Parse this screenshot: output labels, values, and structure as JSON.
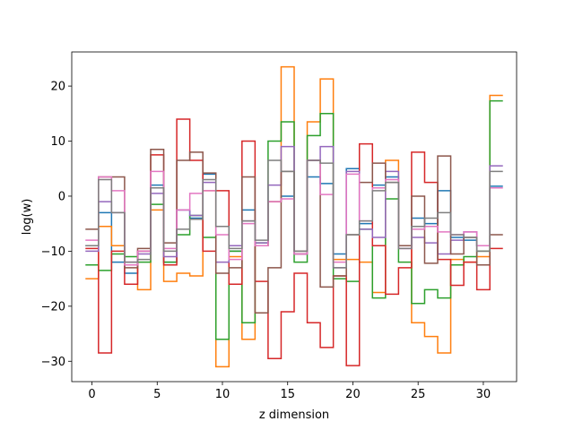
{
  "chart_data": {
    "type": "line",
    "drawstyle": "steps-mid",
    "title": "",
    "xlabel": "z dimension",
    "ylabel": "log(w)",
    "xlim": [
      -1.55,
      32.55
    ],
    "ylim": [
      -33.7,
      26.2
    ],
    "xticks": [
      0,
      5,
      10,
      15,
      20,
      25,
      30
    ],
    "yticks": [
      -30,
      -20,
      -10,
      0,
      10,
      20
    ],
    "grid": false,
    "legend": "none",
    "x": [
      0,
      1,
      2,
      3,
      4,
      5,
      6,
      7,
      8,
      9,
      10,
      11,
      12,
      13,
      14,
      15,
      16,
      17,
      18,
      19,
      20,
      21,
      22,
      23,
      24,
      25,
      26,
      27,
      28,
      29,
      30,
      31
    ],
    "series": [
      {
        "color": "#1f77b4",
        "values": [
          -9,
          -3,
          -12,
          -14,
          -10,
          2,
          -12,
          -2.5,
          -4,
          4,
          -5.5,
          -10,
          -2.5,
          -9,
          -1,
          0,
          -10.5,
          3.5,
          2.3,
          -10.5,
          5,
          -5,
          2,
          3.5,
          -9,
          -4,
          -5,
          1,
          -7.5,
          -8,
          -9,
          1.8
        ]
      },
      {
        "color": "#ff7f0e",
        "values": [
          -15,
          -5.5,
          -9,
          -12.5,
          -17,
          -2.5,
          -15.5,
          -14,
          -14.5,
          1,
          -31,
          -11,
          -26,
          -9,
          -1,
          23.5,
          -10.5,
          13.5,
          21.3,
          -11.5,
          -11.5,
          -12,
          -17.5,
          6.5,
          -9,
          -23,
          -25.5,
          -28.5,
          -11.5,
          -12,
          -11,
          18.3
        ]
      },
      {
        "color": "#2ca02c",
        "values": [
          -12.5,
          -13.5,
          -10.5,
          -11,
          -12,
          -1.5,
          -12,
          -7,
          -3.5,
          -7.5,
          -26,
          -10,
          -23,
          -8.5,
          10,
          13.5,
          -12,
          11,
          15,
          -15,
          -15.5,
          -6,
          -18.5,
          -0.5,
          -12,
          -19.5,
          -17,
          -18.5,
          -12.5,
          -11,
          -10,
          17.3
        ]
      },
      {
        "color": "#d62728",
        "values": [
          -9.5,
          -28.5,
          -10,
          -16,
          -10,
          7.5,
          -12.5,
          14,
          6.5,
          -10,
          1,
          -16,
          10,
          -15.5,
          -29.5,
          -21,
          -14,
          -23,
          -27.5,
          -14.5,
          -30.8,
          9.5,
          -9,
          -17.8,
          -13,
          8,
          2.5,
          -11.5,
          -16.2,
          -12,
          -17,
          -9.5
        ]
      },
      {
        "color": "#9467bd",
        "values": [
          -10,
          -1,
          -3,
          -12,
          -10.5,
          0.5,
          -11,
          -2.5,
          -3.5,
          2.5,
          -12,
          -9,
          -4.5,
          -8.5,
          2,
          9,
          -10.5,
          6.5,
          9,
          -13,
          4.5,
          -6,
          -7.5,
          4.5,
          -9.5,
          -7.5,
          -8.5,
          -10.5,
          -8,
          -6.5,
          -9,
          5.5
        ]
      },
      {
        "color": "#8c564b",
        "values": [
          -6,
          3.5,
          3.5,
          -13,
          -9.5,
          8.5,
          -8.5,
          6.5,
          8,
          4.2,
          -14,
          -13,
          3.5,
          -21.2,
          -13,
          4.5,
          -10,
          6.5,
          -16.5,
          -14.5,
          -7,
          2.5,
          6,
          2.5,
          -9,
          0,
          -12.2,
          7.3,
          -10.5,
          -7.5,
          -12.5,
          -7
        ]
      },
      {
        "color": "#e377c2",
        "values": [
          -8,
          3.5,
          1,
          -12.5,
          -10,
          4.5,
          -9.5,
          -2.5,
          0.5,
          1,
          -7,
          -11.5,
          -5,
          -9,
          -1,
          -0.5,
          -10.5,
          6.5,
          0.3,
          -12,
          4,
          -4.5,
          1.5,
          3,
          -9.5,
          -6,
          -5.5,
          -6.5,
          -7,
          -6.5,
          -9,
          1.5
        ]
      },
      {
        "color": "#7f7f7f",
        "values": [
          -9,
          3,
          -3,
          -12,
          -11.5,
          1.5,
          -10,
          -6,
          -4.2,
          3,
          -5.5,
          -9.5,
          -4.5,
          -8,
          6.5,
          4.5,
          -10,
          6.5,
          6,
          -13,
          -7,
          -4.5,
          1,
          2.5,
          -9.5,
          -5.5,
          -4,
          -3,
          -7,
          -7.5,
          -10,
          4.5
        ]
      }
    ]
  }
}
